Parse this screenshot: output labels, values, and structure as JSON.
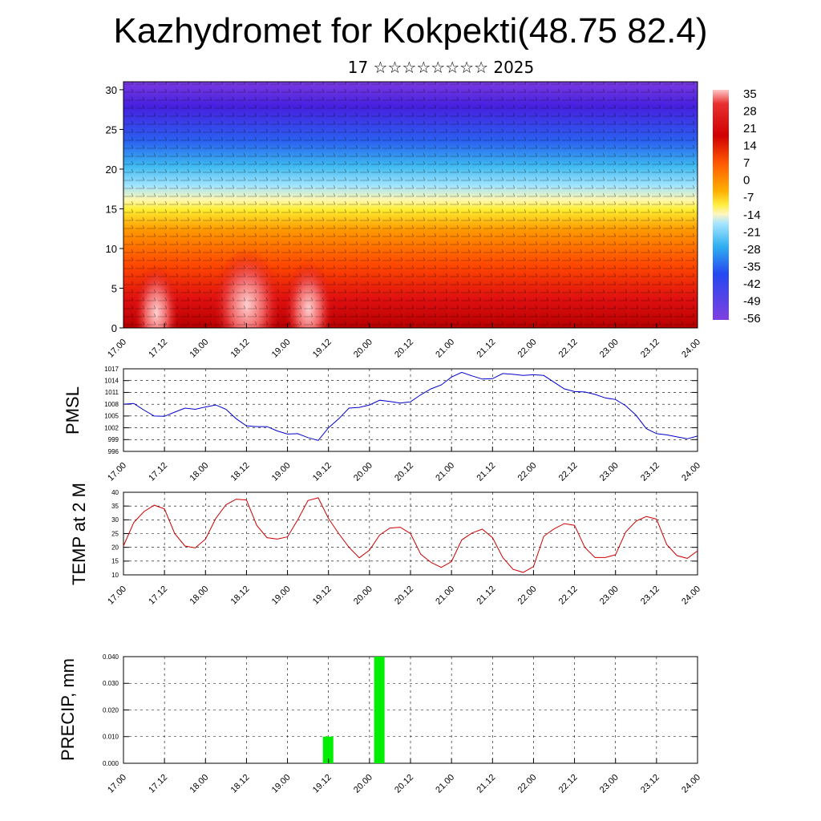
{
  "title": "Kazhydromet for Kokpekti(48.75 82.4)",
  "subtitle": "17 ☆☆☆☆☆☆☆☆ 2025",
  "chart_data": [
    {
      "type": "heatmap",
      "description_kind": "height-time cross section of temperature with wind barbs",
      "x_tick_labels": [
        "17.00",
        "17.12",
        "18.00",
        "18.12",
        "19.00",
        "19.12",
        "20.00",
        "20.12",
        "21.00",
        "21.12",
        "22.00",
        "22.12",
        "23.00",
        "23.12",
        "24.00"
      ],
      "y_ticks": [
        0,
        5,
        10,
        15,
        20,
        25,
        30
      ],
      "ylim": [
        0,
        31
      ],
      "colorbar_labels": [
        "35",
        "28",
        "21",
        "14",
        "7",
        "0",
        "-7",
        "-14",
        "-21",
        "-28",
        "-35",
        "-42",
        "-49",
        "-56"
      ],
      "colors": {
        "hot": "#c80000",
        "warm": "#ff6a00",
        "mild": "#ffe100",
        "cool": "#80d8ff",
        "cold": "#1e90ff",
        "coldest": "#3b1bd6"
      }
    },
    {
      "type": "line",
      "ylabel": "PMSL",
      "x_tick_labels": [
        "17.00",
        "17.12",
        "18.00",
        "18.12",
        "19.00",
        "19.12",
        "20.00",
        "20.12",
        "21.00",
        "21.12",
        "22.00",
        "22.12",
        "23.00",
        "23.12",
        "24.00"
      ],
      "y_ticks": [
        996,
        999,
        1002,
        1005,
        1008,
        1011,
        1014,
        1017
      ],
      "ylim": [
        996,
        1017
      ],
      "color": "#0000cc",
      "x": [
        0,
        3,
        6,
        9,
        12,
        15,
        18,
        21,
        24,
        27,
        30,
        33,
        36,
        39,
        42,
        45,
        48,
        51,
        54,
        57,
        60,
        63,
        66,
        69,
        72,
        75,
        78,
        81,
        84,
        87,
        90,
        93,
        96,
        99,
        102,
        105,
        108,
        111,
        114,
        117,
        120,
        123,
        126,
        129,
        132,
        135,
        138,
        141,
        144,
        147,
        150,
        153,
        156,
        159,
        162,
        165,
        168
      ],
      "values": [
        1008,
        1008.2,
        1006.5,
        1005,
        1004.9,
        1006,
        1007,
        1006.7,
        1007.3,
        1007.8,
        1006.7,
        1004.3,
        1002.5,
        1002.3,
        1002.3,
        1001.2,
        1000.4,
        1000.5,
        999.5,
        998.8,
        1002,
        1004.3,
        1007,
        1007.2,
        1007.8,
        1009,
        1008.7,
        1008.3,
        1008.6,
        1010.4,
        1011.9,
        1012.9,
        1014.9,
        1016.1,
        1015.2,
        1014.4,
        1014.5,
        1015.8,
        1015.6,
        1015.3,
        1015.5,
        1015.3,
        1013.6,
        1011.9,
        1011.2,
        1011.1,
        1010.5,
        1009.6,
        1009.2,
        1007.6,
        1005.2,
        1001.8,
        1000.5,
        1000.2,
        999.7,
        999.2,
        999.9
      ]
    },
    {
      "type": "line",
      "ylabel": "TEMP at 2 M",
      "x_tick_labels": [
        "17.00",
        "17.12",
        "18.00",
        "18.12",
        "19.00",
        "19.12",
        "20.00",
        "20.12",
        "21.00",
        "21.12",
        "22.00",
        "22.12",
        "23.00",
        "23.12",
        "24.00"
      ],
      "y_ticks": [
        10,
        15,
        20,
        25,
        30,
        35,
        40
      ],
      "ylim": [
        10,
        40
      ],
      "color": "#cc0000",
      "x": [
        0,
        3,
        6,
        9,
        12,
        15,
        18,
        21,
        24,
        27,
        30,
        33,
        36,
        39,
        42,
        45,
        48,
        51,
        54,
        57,
        60,
        63,
        66,
        69,
        72,
        75,
        78,
        81,
        84,
        87,
        90,
        93,
        96,
        99,
        102,
        105,
        108,
        111,
        114,
        117,
        120,
        123,
        126,
        129,
        132,
        135,
        138,
        141,
        144,
        147,
        150,
        153,
        156,
        159,
        162,
        165,
        168
      ],
      "values": [
        20.5,
        29,
        33,
        35.3,
        34,
        25,
        20.5,
        19.8,
        23,
        30.5,
        35.5,
        37.5,
        37.2,
        28,
        23.5,
        23,
        23.8,
        30,
        37,
        38,
        30.5,
        25,
        20,
        16.2,
        19,
        24.5,
        27,
        27.3,
        25,
        17.5,
        14.5,
        12.7,
        14.8,
        22.7,
        25.2,
        26.6,
        23.5,
        16.3,
        12,
        10.9,
        13,
        24,
        26.7,
        28.6,
        28,
        20,
        16.3,
        16.3,
        17.3,
        25.6,
        29.5,
        31.2,
        30.2,
        21,
        17,
        16,
        18.7
      ]
    },
    {
      "type": "bar",
      "ylabel": "PRECIP, mm",
      "x_tick_labels": [
        "17.00",
        "17.12",
        "18.00",
        "18.12",
        "19.00",
        "19.12",
        "20.00",
        "20.12",
        "21.00",
        "21.12",
        "22.00",
        "22.12",
        "23.00",
        "23.12",
        "24.00"
      ],
      "y_tick_labels": [
        "0.000",
        "0.010",
        "0.020",
        "0.030",
        "0.040"
      ],
      "ylim": [
        0,
        0.04
      ],
      "color": "#00ee00",
      "bars": [
        {
          "x": 60,
          "value": 0.01
        },
        {
          "x": 75,
          "value": 0.04
        }
      ]
    }
  ]
}
